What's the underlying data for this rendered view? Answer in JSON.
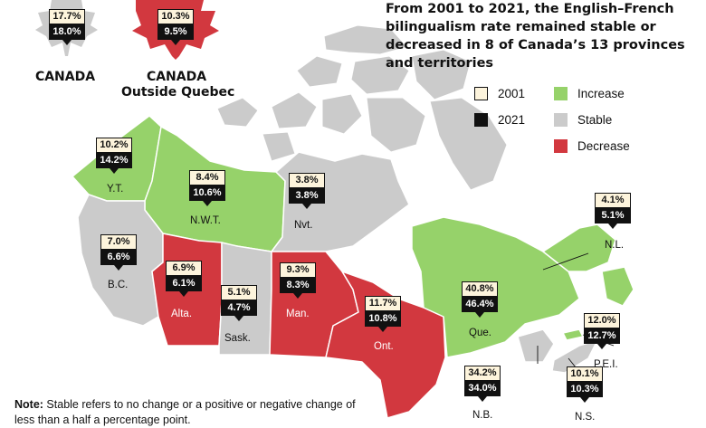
{
  "title_lines": [
    "From 2001 to 2021, the English–French",
    "bilingualism rate remained stable or",
    "decreased in 8 of Canada’s 13 provinces",
    "and territories"
  ],
  "national": {
    "canada": {
      "line1": "CANADA",
      "line2": "",
      "v2001": "17.7%",
      "v2021": "18.0%"
    },
    "outside_quebec": {
      "line1": "CANADA",
      "line2": "Outside Quebec",
      "v2001": "10.3%",
      "v2021": "9.5%"
    }
  },
  "legend": {
    "year_2001": "2001",
    "year_2021": "2021",
    "increase": "Increase",
    "stable": "Stable",
    "decrease": "Decrease"
  },
  "colors": {
    "increase": "#96d26a",
    "stable": "#cbcbcb",
    "decrease": "#d2383f",
    "value_2001_bg": "#fdf4dc",
    "value_2021_bg": "#111111"
  },
  "regions": {
    "yt": {
      "label": "Y.T.",
      "v2001": "10.2%",
      "v2021": "14.2%",
      "status": "increase"
    },
    "nwt": {
      "label": "N.W.T.",
      "v2001": "8.4%",
      "v2021": "10.6%",
      "status": "increase"
    },
    "nvt": {
      "label": "Nvt.",
      "v2001": "3.8%",
      "v2021": "3.8%",
      "status": "stable"
    },
    "bc": {
      "label": "B.C.",
      "v2001": "7.0%",
      "v2021": "6.6%",
      "status": "stable"
    },
    "alta": {
      "label": "Alta.",
      "v2001": "6.9%",
      "v2021": "6.1%",
      "status": "decrease"
    },
    "sask": {
      "label": "Sask.",
      "v2001": "5.1%",
      "v2021": "4.7%",
      "status": "stable"
    },
    "man": {
      "label": "Man.",
      "v2001": "9.3%",
      "v2021": "8.3%",
      "status": "decrease"
    },
    "ont": {
      "label": "Ont.",
      "v2001": "11.7%",
      "v2021": "10.8%",
      "status": "decrease"
    },
    "que": {
      "label": "Que.",
      "v2001": "40.8%",
      "v2021": "46.4%",
      "status": "increase"
    },
    "nl": {
      "label": "N.L.",
      "v2001": "4.1%",
      "v2021": "5.1%",
      "status": "increase"
    },
    "pei": {
      "label": "P.E.I.",
      "v2001": "12.0%",
      "v2021": "12.7%",
      "status": "increase"
    },
    "nb": {
      "label": "N.B.",
      "v2001": "34.2%",
      "v2021": "34.0%",
      "status": "stable"
    },
    "ns": {
      "label": "N.S.",
      "v2001": "10.1%",
      "v2021": "10.3%",
      "status": "stable"
    }
  },
  "note": {
    "bold": "Note:",
    "text": " Stable refers to no change or a positive or negative change of less than a half a percentage point."
  }
}
